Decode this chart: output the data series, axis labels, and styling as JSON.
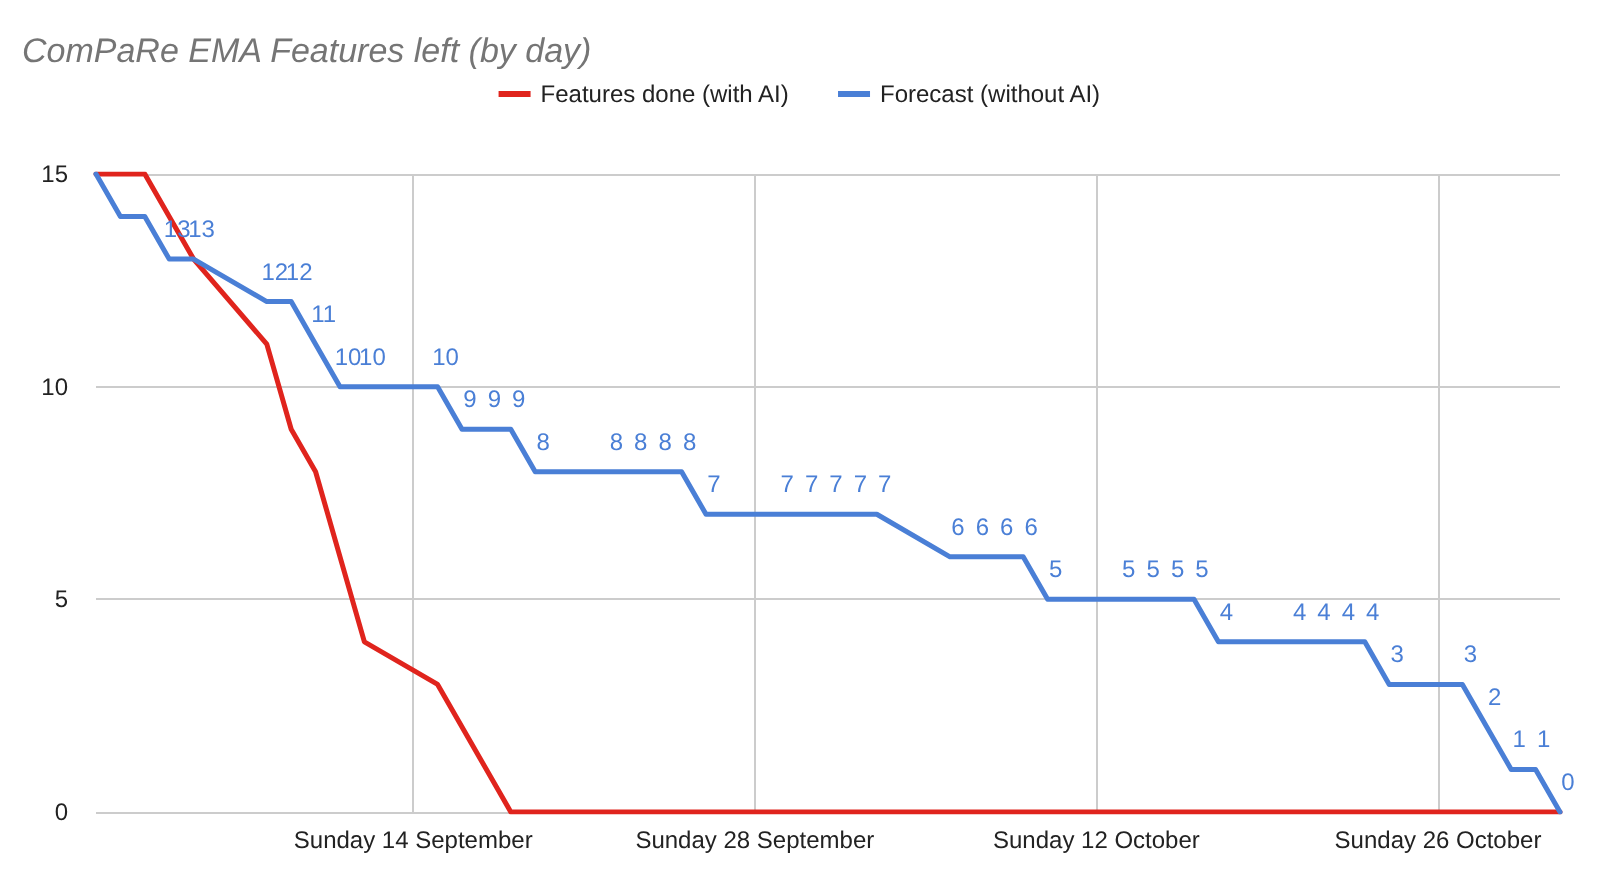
{
  "chart_data": {
    "type": "line",
    "title": "ComPaRe EMA Features left (by day)",
    "xlim": [
      "--09-01",
      "--10-31"
    ],
    "xticks": [
      {
        "value": "--09-14",
        "label": "Sunday 14 September"
      },
      {
        "value": "--09-28",
        "label": "Sunday 28 September"
      },
      {
        "value": "--10-12",
        "label": "Sunday 12 October"
      },
      {
        "value": "--10-26",
        "label": "Sunday 26 October"
      }
    ],
    "ylim": [
      0,
      15
    ],
    "yticks": [
      0,
      5,
      10,
      15
    ],
    "grid": true,
    "legend": "top",
    "marker": "none",
    "line_style": "solid",
    "series": [
      {
        "name": "Features done (with AI)",
        "color": "#e0241d",
        "x": [
          "--09-01",
          "--09-03",
          "--09-05",
          "--09-08",
          "--09-09",
          "--09-10",
          "--09-12",
          "--09-15",
          "--09-18",
          "--10-31"
        ],
        "values": [
          15,
          15,
          13,
          11,
          9,
          8,
          4,
          3,
          0,
          0
        ]
      },
      {
        "name": "Forecast (without AI)",
        "color": "#4a7fd6",
        "x": [
          "--09-01",
          "--09-02",
          "--09-03",
          "--09-04",
          "--09-05",
          "--09-08",
          "--09-09",
          "--09-10",
          "--09-11",
          "--09-12",
          "--09-15",
          "--09-16",
          "--09-17",
          "--09-18",
          "--09-19",
          "--09-22",
          "--09-23",
          "--09-24",
          "--09-25",
          "--09-26",
          "--09-29",
          "--09-30",
          "--10-01",
          "--10-02",
          "--10-03",
          "--10-06",
          "--10-07",
          "--10-08",
          "--10-09",
          "--10-10",
          "--10-13",
          "--10-14",
          "--10-15",
          "--10-16",
          "--10-17",
          "--10-20",
          "--10-21",
          "--10-22",
          "--10-23",
          "--10-24",
          "--10-27",
          "--10-28",
          "--10-29",
          "--10-30",
          "--10-31"
        ],
        "values": [
          15,
          14,
          14,
          13,
          13,
          12,
          12,
          11,
          10,
          10,
          10,
          9,
          9,
          9,
          8,
          8,
          8,
          8,
          8,
          7,
          7,
          7,
          7,
          7,
          7,
          6,
          6,
          6,
          6,
          5,
          5,
          5,
          5,
          5,
          4,
          4,
          4,
          4,
          4,
          3,
          3,
          2,
          1,
          1,
          0
        ],
        "value_labels": [
          null,
          null,
          null,
          "13",
          "13",
          "12",
          "12",
          "11",
          "10",
          "10",
          "10",
          "9",
          "9",
          "9",
          "8",
          "8",
          "8",
          "8",
          "8",
          "7",
          "7",
          "7",
          "7",
          "7",
          "7",
          "6",
          "6",
          "6",
          "6",
          "5",
          "5",
          "5",
          "5",
          "5",
          "4",
          "4",
          "4",
          "4",
          "4",
          "3",
          "3",
          "2",
          "1",
          "1",
          "0"
        ]
      }
    ]
  }
}
